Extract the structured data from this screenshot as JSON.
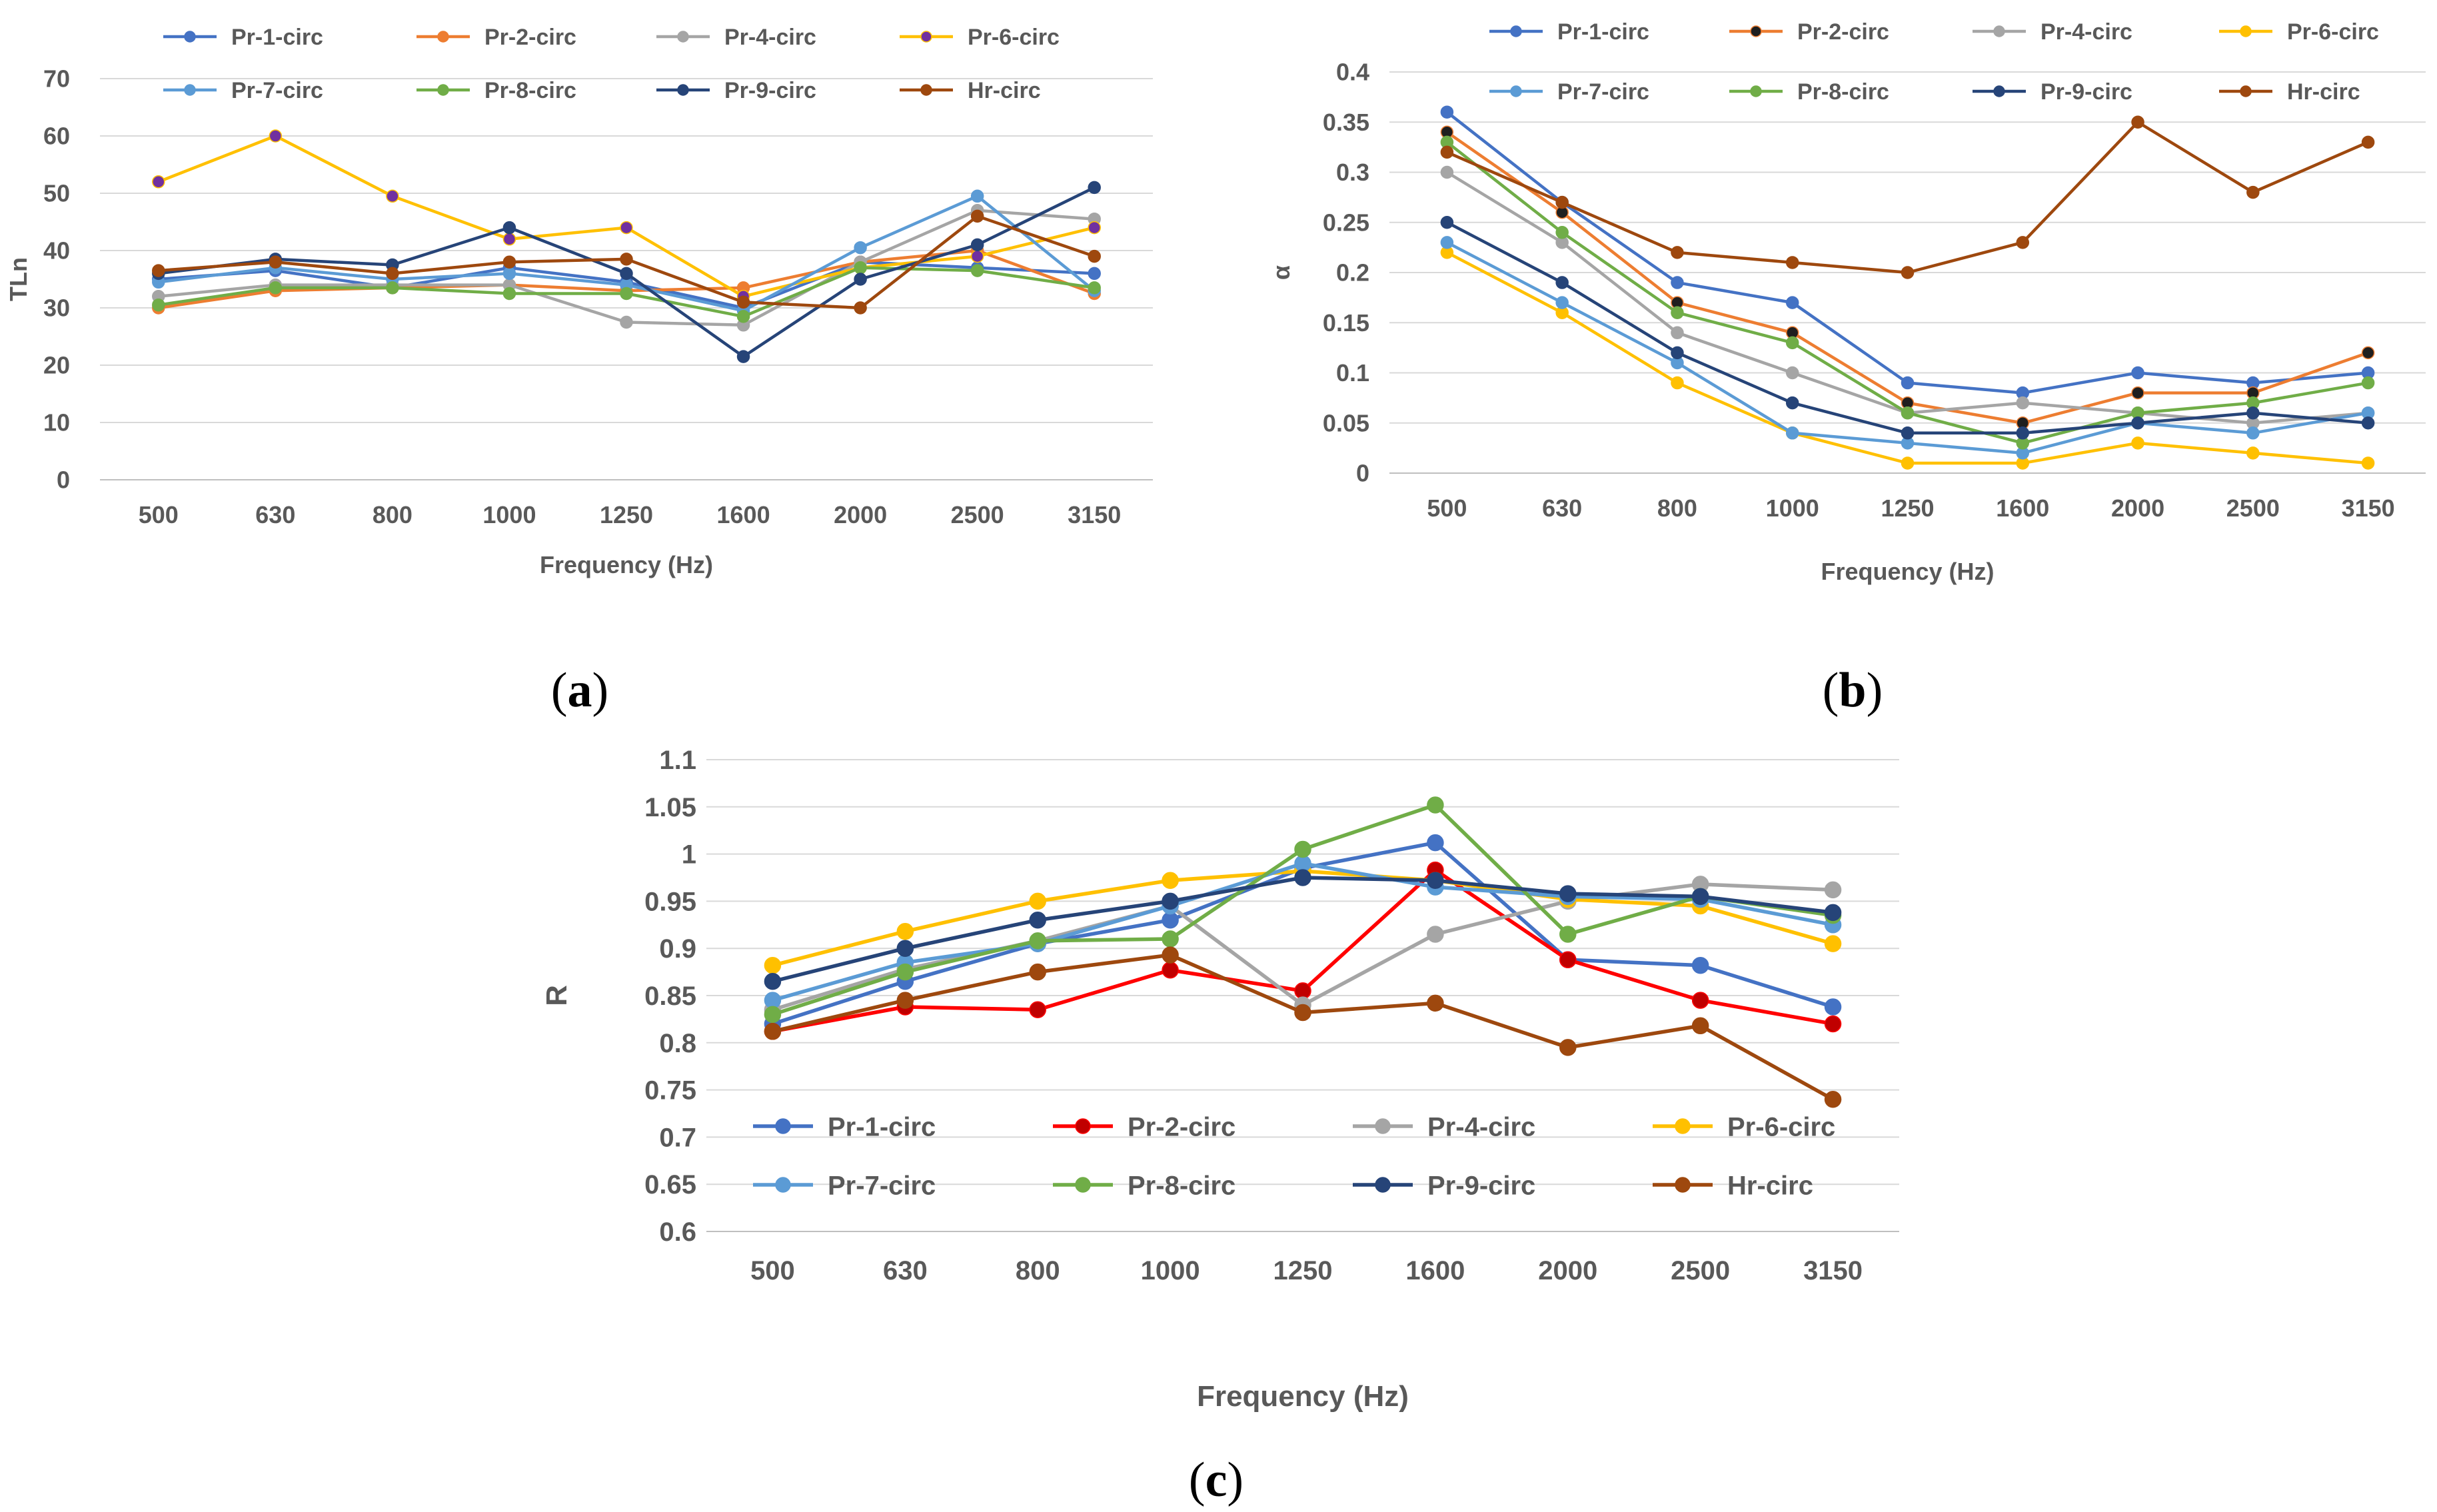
{
  "chart_data": [
    {
      "type": "line",
      "panel_label": "a",
      "xlabel": "Frequency (Hz)",
      "ylabel": "TLn",
      "ylim": [
        0,
        70
      ],
      "yticks": [
        "0",
        "10",
        "20",
        "30",
        "40",
        "50",
        "60",
        "70"
      ],
      "categories": [
        "500",
        "630",
        "800",
        "1000",
        "1250",
        "1600",
        "2000",
        "2500",
        "3150"
      ],
      "grid": true,
      "legend_position": "top",
      "series": [
        {
          "name": "Pr-1-circ",
          "color": "#4472C4",
          "marker": "#4472C4",
          "values": [
            35,
            36.5,
            33.5,
            37,
            34.5,
            30,
            38,
            37,
            36
          ]
        },
        {
          "name": "Pr-2-circ",
          "color": "#ED7D31",
          "marker": "#ED7D31",
          "values": [
            30,
            33,
            33.5,
            34,
            33,
            33.5,
            38,
            40,
            32.5
          ]
        },
        {
          "name": "Pr-4-circ",
          "color": "#A5A5A5",
          "marker": "#A5A5A5",
          "values": [
            32,
            34,
            34,
            34,
            27.5,
            27,
            38,
            47,
            45.5
          ]
        },
        {
          "name": "Pr-6-circ",
          "color": "#FFC000",
          "marker": "#7030A0",
          "values": [
            52,
            60,
            49.5,
            42,
            44,
            32,
            37,
            39,
            44
          ]
        },
        {
          "name": "Pr-7-circ",
          "color": "#5B9BD5",
          "marker": "#5B9BD5",
          "values": [
            34.5,
            37,
            35,
            36,
            34,
            29.5,
            40.5,
            49.5,
            33
          ]
        },
        {
          "name": "Pr-8-circ",
          "color": "#70AD47",
          "marker": "#70AD47",
          "values": [
            30.5,
            33.5,
            33.5,
            32.5,
            32.5,
            28.5,
            37,
            36.5,
            33.5
          ]
        },
        {
          "name": "Pr-9-circ",
          "color": "#264478",
          "marker": "#264478",
          "values": [
            36,
            38.5,
            37.5,
            44,
            36,
            21.5,
            35,
            41,
            51
          ]
        },
        {
          "name": "Hr-circ",
          "color": "#9E480E",
          "marker": "#9E480E",
          "values": [
            36.5,
            38,
            36,
            38,
            38.5,
            31,
            30,
            46,
            39
          ]
        }
      ]
    },
    {
      "type": "line",
      "panel_label": "b",
      "xlabel": "Frequency (Hz)",
      "ylabel": "α",
      "ylim": [
        0,
        0.4
      ],
      "yticks": [
        "0",
        "0.05",
        "0.1",
        "0.15",
        "0.2",
        "0.25",
        "0.3",
        "0.35",
        "0.4"
      ],
      "categories": [
        "500",
        "630",
        "800",
        "1000",
        "1250",
        "1600",
        "2000",
        "2500",
        "3150"
      ],
      "grid": true,
      "legend_position": "top",
      "series": [
        {
          "name": "Pr-1-circ",
          "color": "#4472C4",
          "marker": "#4472C4",
          "values": [
            0.36,
            0.27,
            0.19,
            0.17,
            0.09,
            0.08,
            0.1,
            0.09,
            0.1
          ]
        },
        {
          "name": "Pr-2-circ",
          "color": "#ED7D31",
          "marker": "#1F1F1F",
          "values": [
            0.34,
            0.26,
            0.17,
            0.14,
            0.07,
            0.05,
            0.08,
            0.08,
            0.12
          ]
        },
        {
          "name": "Pr-4-circ",
          "color": "#A5A5A5",
          "marker": "#A5A5A5",
          "values": [
            0.3,
            0.23,
            0.14,
            0.1,
            0.06,
            0.07,
            0.06,
            0.05,
            0.06
          ]
        },
        {
          "name": "Pr-6-circ",
          "color": "#FFC000",
          "marker": "#FFC000",
          "values": [
            0.22,
            0.16,
            0.09,
            0.04,
            0.01,
            0.01,
            0.03,
            0.02,
            0.01
          ]
        },
        {
          "name": "Pr-7-circ",
          "color": "#5B9BD5",
          "marker": "#5B9BD5",
          "values": [
            0.23,
            0.17,
            0.11,
            0.04,
            0.03,
            0.02,
            0.05,
            0.04,
            0.06
          ]
        },
        {
          "name": "Pr-8-circ",
          "color": "#70AD47",
          "marker": "#70AD47",
          "values": [
            0.33,
            0.24,
            0.16,
            0.13,
            0.06,
            0.03,
            0.06,
            0.07,
            0.09
          ]
        },
        {
          "name": "Pr-9-circ",
          "color": "#264478",
          "marker": "#264478",
          "values": [
            0.25,
            0.19,
            0.12,
            0.07,
            0.04,
            0.04,
            0.05,
            0.06,
            0.05
          ]
        },
        {
          "name": "Hr-circ",
          "color": "#9E480E",
          "marker": "#9E480E",
          "values": [
            0.32,
            0.27,
            0.22,
            0.21,
            0.2,
            0.23,
            0.35,
            0.28,
            0.33
          ]
        }
      ]
    },
    {
      "type": "line",
      "panel_label": "c",
      "xlabel": "Frequency (Hz)",
      "ylabel": "R",
      "ylim": [
        0.6,
        1.1
      ],
      "yticks": [
        "0.6",
        "0.65",
        "0.7",
        "0.75",
        "0.8",
        "0.85",
        "0.9",
        "0.95",
        "1",
        "1.05",
        "1.1"
      ],
      "categories": [
        "500",
        "630",
        "800",
        "1000",
        "1250",
        "1600",
        "2000",
        "2500",
        "3150"
      ],
      "grid": true,
      "legend_position": "bottom-inside",
      "series": [
        {
          "name": "Pr-1-circ",
          "color": "#4472C4",
          "marker": "#4472C4",
          "values": [
            0.82,
            0.865,
            0.905,
            0.93,
            0.985,
            1.012,
            0.888,
            0.882,
            0.838
          ]
        },
        {
          "name": "Pr-2-circ",
          "color": "#FF0000",
          "marker": "#C00000",
          "values": [
            0.812,
            0.838,
            0.835,
            0.877,
            0.855,
            0.983,
            0.888,
            0.845,
            0.82
          ]
        },
        {
          "name": "Pr-4-circ",
          "color": "#A5A5A5",
          "marker": "#A5A5A5",
          "values": [
            0.835,
            0.878,
            0.908,
            0.945,
            0.84,
            0.915,
            0.95,
            0.968,
            0.962
          ]
        },
        {
          "name": "Pr-6-circ",
          "color": "#FFC000",
          "marker": "#FFC000",
          "values": [
            0.882,
            0.918,
            0.95,
            0.972,
            0.982,
            0.972,
            0.952,
            0.945,
            0.905
          ]
        },
        {
          "name": "Pr-7-circ",
          "color": "#5B9BD5",
          "marker": "#5B9BD5",
          "values": [
            0.845,
            0.885,
            0.905,
            0.945,
            0.99,
            0.965,
            0.955,
            0.952,
            0.925
          ]
        },
        {
          "name": "Pr-8-circ",
          "color": "#70AD47",
          "marker": "#70AD47",
          "values": [
            0.83,
            0.875,
            0.908,
            0.91,
            1.005,
            1.052,
            0.915,
            0.955,
            0.935
          ]
        },
        {
          "name": "Pr-9-circ",
          "color": "#264478",
          "marker": "#264478",
          "values": [
            0.865,
            0.9,
            0.93,
            0.95,
            0.975,
            0.972,
            0.958,
            0.955,
            0.938
          ]
        },
        {
          "name": "Hr-circ",
          "color": "#9E480E",
          "marker": "#9E480E",
          "values": [
            0.812,
            0.845,
            0.875,
            0.893,
            0.832,
            0.842,
            0.795,
            0.818,
            0.74
          ]
        }
      ]
    }
  ]
}
